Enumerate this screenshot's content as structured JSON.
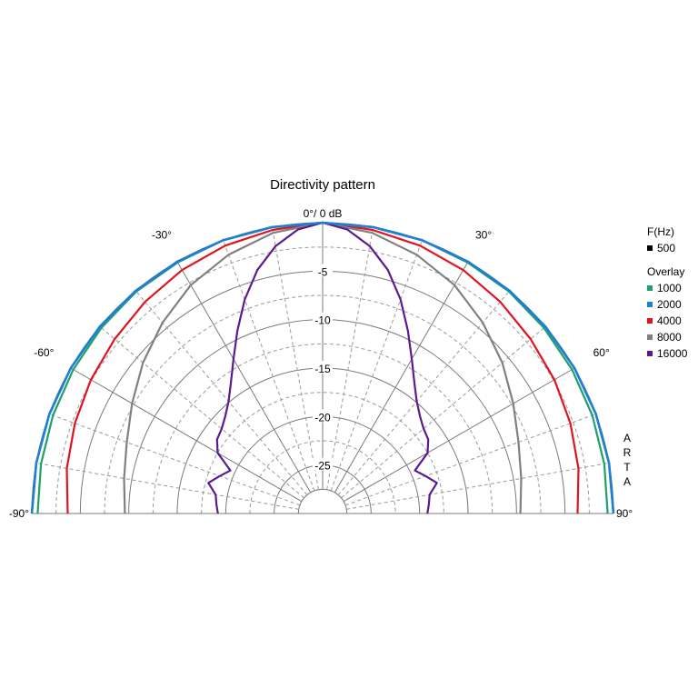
{
  "chart_data": {
    "type": "polar",
    "title": "Directivity pattern",
    "center_label": "0°/ 0 dB",
    "radial_axis": {
      "unit": "dB",
      "range": [
        -30,
        0
      ],
      "tick_labels": [
        "-5",
        "-10",
        "-15",
        "-20",
        "-25"
      ],
      "tick_values": [
        -5,
        -10,
        -15,
        -20,
        -25
      ]
    },
    "angular_axis": {
      "range": [
        -90,
        90
      ],
      "labels": [
        {
          "angle": -90,
          "text": "-90°"
        },
        {
          "angle": -60,
          "text": "-60°"
        },
        {
          "angle": -30,
          "text": "-30°"
        },
        {
          "angle": 30,
          "text": "30°"
        },
        {
          "angle": 60,
          "text": "60°"
        },
        {
          "angle": 90,
          "text": "90°"
        }
      ]
    },
    "grid": true,
    "legend": {
      "title": "F(Hz)",
      "overlay_title": "Overlay",
      "placement": "right"
    },
    "side_label": [
      "A",
      "R",
      "T",
      "A"
    ],
    "series": [
      {
        "name": "500",
        "color": "#000000",
        "angles": [
          0,
          10,
          20,
          30,
          40,
          50,
          60,
          70,
          80,
          90
        ],
        "values": [
          0,
          0,
          0,
          0,
          0,
          0,
          0,
          0,
          0,
          0
        ]
      },
      {
        "name": "1000",
        "color": "#1fa06a",
        "angles": [
          0,
          10,
          20,
          30,
          40,
          50,
          60,
          70,
          80,
          90
        ],
        "values": [
          0,
          0,
          0,
          -0.1,
          -0.1,
          -0.2,
          -0.3,
          -0.4,
          -0.5,
          -0.6
        ]
      },
      {
        "name": "2000",
        "color": "#1e7fd6",
        "angles": [
          0,
          10,
          20,
          30,
          40,
          50,
          60,
          70,
          80,
          90
        ],
        "values": [
          0,
          0,
          0,
          0,
          0,
          0,
          0,
          0,
          0,
          0
        ]
      },
      {
        "name": "4000",
        "color": "#e0141e",
        "angles": [
          0,
          10,
          20,
          30,
          40,
          50,
          60,
          70,
          80,
          90
        ],
        "values": [
          0,
          -0.3,
          -0.6,
          -1.0,
          -1.5,
          -2.0,
          -2.4,
          -2.8,
          -3.2,
          -3.7
        ]
      },
      {
        "name": "8000",
        "color": "#808080",
        "angles": [
          0,
          10,
          20,
          30,
          40,
          50,
          60,
          70,
          80,
          90
        ],
        "values": [
          0,
          -0.6,
          -1.6,
          -2.8,
          -4.3,
          -5.8,
          -7.3,
          -8.5,
          -9.2,
          -9.6
        ]
      },
      {
        "name": "16000",
        "color": "#5b1a8e",
        "angles": [
          0,
          5,
          10,
          15,
          20,
          25,
          30,
          35,
          40,
          45,
          50,
          55,
          60,
          65,
          70,
          75,
          80,
          85,
          90
        ],
        "values": [
          0,
          -0.6,
          -2.0,
          -4.0,
          -6.5,
          -9.2,
          -11.6,
          -13.5,
          -14.9,
          -15.8,
          -16.4,
          -16.7,
          -17.5,
          -19.5,
          -18.7,
          -17.8,
          -18.8,
          -19.0,
          -19.2
        ]
      }
    ]
  }
}
